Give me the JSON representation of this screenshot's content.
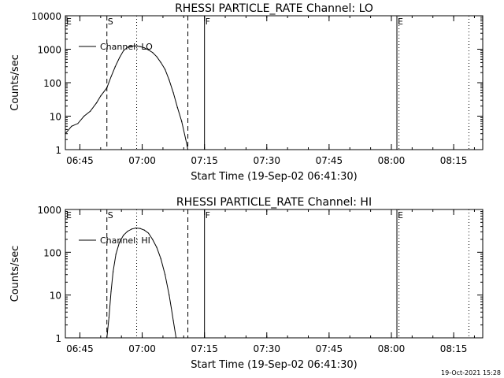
{
  "chart_data": [
    {
      "type": "line",
      "title": "RHESSI PARTICLE_RATE Channel: LO",
      "xlabel": "Start Time (19-Sep-02 06:41:30)",
      "ylabel": "Counts/sec",
      "y_scale": "log",
      "xlim": [
        "06:41:30",
        "08:22:00"
      ],
      "ylim": [
        1,
        10000
      ],
      "x_ticks": [
        "06:45",
        "07:00",
        "07:15",
        "07:30",
        "07:45",
        "08:00",
        "08:15"
      ],
      "y_ticks": [
        "1",
        "10",
        "100",
        "1000",
        "10000"
      ],
      "legend": {
        "position": "top-left",
        "entries": [
          "Channel: LO"
        ]
      },
      "flags": [
        {
          "label": "E",
          "time": "06:41:30",
          "style": "none"
        },
        {
          "label": "S",
          "time": "06:51:30",
          "style": "dashed"
        },
        {
          "label": "",
          "time": "06:58:40",
          "style": "dotted"
        },
        {
          "label": "",
          "time": "07:11:00",
          "style": "dashed"
        },
        {
          "label": "F",
          "time": "07:15:00",
          "style": "solid"
        },
        {
          "label": "E",
          "time": "08:01:20",
          "style": "solid"
        },
        {
          "label": "",
          "time": "08:01:50",
          "style": "dotted"
        },
        {
          "label": "",
          "time": "08:18:40",
          "style": "dotted"
        }
      ],
      "series": [
        {
          "name": "Channel: LO",
          "x": [
            "06:41:30",
            "06:43:00",
            "06:44:30",
            "06:46:00",
            "06:47:30",
            "06:49:00",
            "06:50:00",
            "06:51:30",
            "06:52:30",
            "06:53:30",
            "06:54:30",
            "06:55:30",
            "06:56:30",
            "06:57:30",
            "06:58:30",
            "06:59:30",
            "07:00:30",
            "07:01:30",
            "07:02:30",
            "07:03:30",
            "07:04:30",
            "07:05:30",
            "07:06:30",
            "07:07:30",
            "07:08:30",
            "07:09:30",
            "07:10:30",
            "07:11:00"
          ],
          "y": [
            3,
            5,
            6,
            10,
            14,
            25,
            40,
            70,
            150,
            300,
            550,
            900,
            1150,
            1250,
            1250,
            1200,
            1100,
            950,
            800,
            600,
            400,
            250,
            120,
            50,
            18,
            7,
            2,
            1
          ]
        }
      ]
    },
    {
      "type": "line",
      "title": "RHESSI PARTICLE_RATE Channel: HI",
      "xlabel": "Start Time (19-Sep-02 06:41:30)",
      "ylabel": "Counts/sec",
      "y_scale": "log",
      "xlim": [
        "06:41:30",
        "08:22:00"
      ],
      "ylim": [
        1,
        1000
      ],
      "x_ticks": [
        "06:45",
        "07:00",
        "07:15",
        "07:30",
        "07:45",
        "08:00",
        "08:15"
      ],
      "y_ticks": [
        "1",
        "10",
        "100",
        "1000"
      ],
      "legend": {
        "position": "top-left",
        "entries": [
          "Channel: HI"
        ]
      },
      "flags": [
        {
          "label": "E",
          "time": "06:41:30",
          "style": "none"
        },
        {
          "label": "S",
          "time": "06:51:30",
          "style": "dashed"
        },
        {
          "label": "",
          "time": "06:58:40",
          "style": "dotted"
        },
        {
          "label": "",
          "time": "07:11:00",
          "style": "dashed"
        },
        {
          "label": "F",
          "time": "07:15:00",
          "style": "solid"
        },
        {
          "label": "E",
          "time": "08:01:20",
          "style": "solid"
        },
        {
          "label": "",
          "time": "08:01:50",
          "style": "dotted"
        },
        {
          "label": "",
          "time": "08:18:40",
          "style": "dotted"
        }
      ],
      "series": [
        {
          "name": "Channel: HI",
          "x": [
            "06:51:30",
            "06:52:00",
            "06:52:30",
            "06:53:00",
            "06:53:40",
            "06:54:30",
            "06:55:30",
            "06:56:30",
            "06:57:30",
            "06:58:30",
            "06:59:30",
            "07:00:30",
            "07:01:30",
            "07:02:30",
            "07:03:30",
            "07:04:30",
            "07:05:30",
            "07:06:30",
            "07:07:00",
            "07:07:30",
            "07:08:10"
          ],
          "y": [
            1,
            3,
            12,
            35,
            90,
            170,
            250,
            310,
            350,
            370,
            360,
            330,
            280,
            200,
            130,
            70,
            30,
            10,
            5,
            2.5,
            1
          ]
        }
      ]
    }
  ],
  "timestamp": "19-Oct-2021 15:28"
}
